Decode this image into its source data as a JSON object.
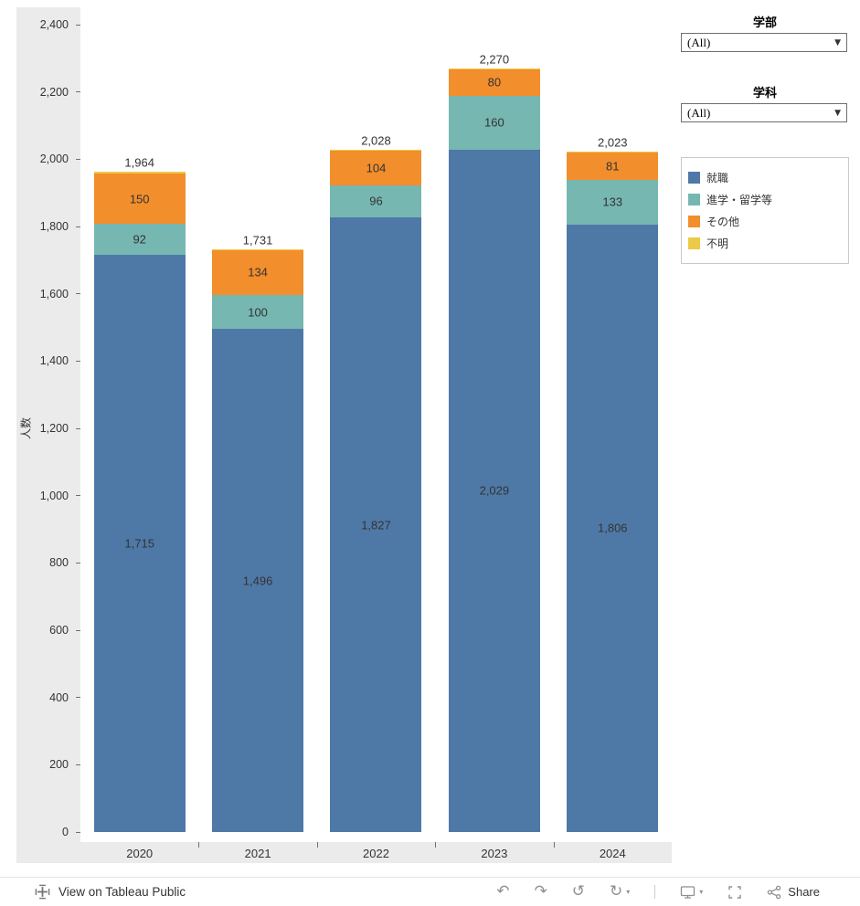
{
  "chart_data": {
    "type": "bar",
    "stacked": true,
    "categories": [
      "2020",
      "2021",
      "2022",
      "2023",
      "2024"
    ],
    "series": [
      {
        "name": "就職",
        "color": "#4e79a7",
        "values": [
          1715,
          1496,
          1827,
          2029,
          1806
        ]
      },
      {
        "name": "進学・留学等",
        "color": "#76b7b2",
        "values": [
          92,
          100,
          96,
          160,
          133
        ]
      },
      {
        "name": "その他",
        "color": "#f28e2b",
        "values": [
          150,
          134,
          104,
          80,
          81
        ]
      },
      {
        "name": "不明",
        "color": "#edc948",
        "values": [
          7,
          1,
          1,
          1,
          3
        ]
      }
    ],
    "totals": [
      1964,
      1731,
      2028,
      2270,
      2023
    ],
    "total_labels": [
      "1,964",
      "1,731",
      "2,028",
      "2,270",
      "2,023"
    ],
    "title": "",
    "xlabel": "",
    "ylabel": "人数",
    "ylim": [
      0,
      2400
    ],
    "ytick_step": 200,
    "grid": false,
    "legend_position": "right"
  },
  "filters": [
    {
      "title": "学部",
      "value": "(All)"
    },
    {
      "title": "学科",
      "value": "(All)"
    }
  ],
  "legend": {
    "items": [
      {
        "label": "就職",
        "color": "#4e79a7"
      },
      {
        "label": "進学・留学等",
        "color": "#76b7b2"
      },
      {
        "label": "その他",
        "color": "#f28e2b"
      },
      {
        "label": "不明",
        "color": "#edc948"
      }
    ]
  },
  "toolbar": {
    "view_on_label": "View on Tableau Public",
    "share_label": "Share"
  },
  "icons": {
    "caret_down": "▼",
    "caret_down_small": "▾",
    "undo": "↶",
    "redo": "↷",
    "replay": "↺",
    "refresh": "↻"
  },
  "colors": {
    "axis_strip_bg": "#ebebeb"
  }
}
